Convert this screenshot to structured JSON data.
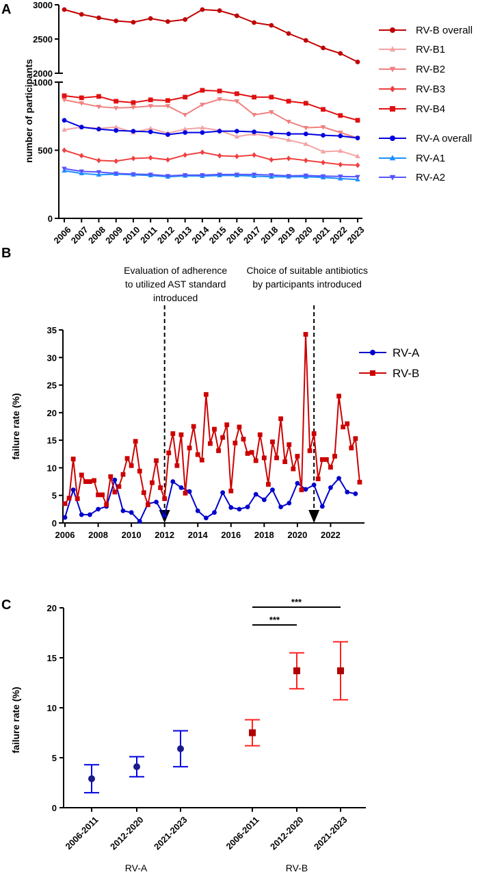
{
  "chart_data": [
    {
      "panel": "A",
      "type": "line",
      "ylabel": "number of participants",
      "y_axis_broken": true,
      "y_ticks_lower": [
        "0",
        "500",
        "1000"
      ],
      "y_ticks_upper": [
        "2000",
        "2500",
        "3000"
      ],
      "ylim_lower": [
        0,
        1000
      ],
      "ylim_upper": [
        2000,
        3000
      ],
      "categories": [
        "2006",
        "2007",
        "2008",
        "2009",
        "2010",
        "2011",
        "2012",
        "2013",
        "2014",
        "2015",
        "2016",
        "2017",
        "2018",
        "2019",
        "2020",
        "2021",
        "2022",
        "2023"
      ],
      "series": [
        {
          "name": "RV-B overall",
          "color": "#c00000",
          "marker": "circle",
          "values": [
            2930,
            2860,
            2810,
            2765,
            2745,
            2800,
            2755,
            2785,
            2930,
            2915,
            2840,
            2740,
            2700,
            2580,
            2480,
            2370,
            2290,
            2165
          ]
        },
        {
          "name": "RV-B1",
          "color": "#f4a3a3",
          "marker": "triangle-up",
          "values": [
            650,
            670,
            660,
            670,
            630,
            660,
            625,
            655,
            665,
            645,
            600,
            620,
            600,
            575,
            545,
            490,
            495,
            455
          ]
        },
        {
          "name": "RV-B2",
          "color": "#f08080",
          "marker": "triangle-down",
          "values": [
            870,
            845,
            820,
            810,
            815,
            825,
            825,
            760,
            835,
            875,
            860,
            760,
            780,
            710,
            665,
            670,
            630,
            590
          ]
        },
        {
          "name": "RV-B3",
          "color": "#f04040",
          "marker": "diamond",
          "values": [
            500,
            460,
            425,
            420,
            440,
            445,
            430,
            465,
            485,
            460,
            455,
            465,
            430,
            440,
            425,
            410,
            395,
            390
          ]
        },
        {
          "name": "RV-B4",
          "color": "#e01010",
          "marker": "square",
          "values": [
            900,
            885,
            895,
            860,
            850,
            870,
            865,
            890,
            940,
            935,
            915,
            890,
            890,
            860,
            845,
            800,
            755,
            720
          ]
        },
        {
          "name": "RV-A overall",
          "color": "#0000e0",
          "marker": "circle",
          "values": [
            720,
            670,
            655,
            645,
            640,
            635,
            615,
            630,
            630,
            640,
            640,
            635,
            625,
            620,
            620,
            610,
            605,
            590
          ]
        },
        {
          "name": "RV-A1",
          "color": "#1e90ff",
          "marker": "triangle-up",
          "values": [
            350,
            330,
            320,
            325,
            320,
            315,
            305,
            312,
            310,
            315,
            315,
            310,
            305,
            305,
            305,
            300,
            292,
            285
          ]
        },
        {
          "name": "RV-A2",
          "color": "#5555ff",
          "marker": "triangle-down",
          "values": [
            365,
            345,
            340,
            330,
            325,
            322,
            312,
            318,
            318,
            322,
            322,
            322,
            318,
            312,
            315,
            310,
            308,
            305
          ]
        }
      ]
    },
    {
      "panel": "B",
      "type": "line",
      "ylabel": "failure rate (%)",
      "ylim": [
        0,
        35
      ],
      "y_ticks": [
        "0",
        "5",
        "10",
        "15",
        "20",
        "25",
        "30",
        "35"
      ],
      "xlim": [
        2006,
        2024
      ],
      "x_ticks": [
        "2006",
        "2008",
        "2010",
        "2012",
        "2014",
        "2016",
        "2018",
        "2020",
        "2022"
      ],
      "annotations": [
        {
          "text_lines": [
            "Evaluation of adherence",
            "to utilized AST standard",
            "introduced"
          ],
          "x": 2012
        },
        {
          "text_lines": [
            "Choice of suitable antibiotics",
            "by participants introduced"
          ],
          "x": 2021
        }
      ],
      "series": [
        {
          "name": "RV-A",
          "color": "#0000cc",
          "marker": "circle",
          "x": [
            2006.0,
            2006.5,
            2007.0,
            2007.5,
            2008.0,
            2008.5,
            2009.0,
            2009.5,
            2010.0,
            2010.5,
            2011.0,
            2011.5,
            2012.0,
            2012.5,
            2013.0,
            2013.5,
            2014.0,
            2014.5,
            2015.0,
            2015.5,
            2016.0,
            2016.5,
            2017.0,
            2017.5,
            2018.0,
            2018.5,
            2019.0,
            2019.5,
            2020.0,
            2020.5,
            2021.0,
            2021.5,
            2022.0,
            2022.5,
            2023.0,
            2023.5
          ],
          "values": [
            1.0,
            6.0,
            1.5,
            1.5,
            2.5,
            3.0,
            7.8,
            2.2,
            1.9,
            0.3,
            3.5,
            3.8,
            1.3,
            7.5,
            6.4,
            5.7,
            2.2,
            0.9,
            1.9,
            5.5,
            2.8,
            2.5,
            2.9,
            5.2,
            4.2,
            6.0,
            2.9,
            3.6,
            7.2,
            6.1,
            6.9,
            3.0,
            6.4,
            8.1,
            5.6,
            5.3
          ]
        },
        {
          "name": "RV-B",
          "color": "#cc0000",
          "marker": "square",
          "x": [
            2006.0,
            2006.25,
            2006.5,
            2006.75,
            2007.0,
            2007.25,
            2007.5,
            2007.75,
            2008.0,
            2008.25,
            2008.5,
            2008.75,
            2009.0,
            2009.25,
            2009.5,
            2009.75,
            2010.0,
            2010.25,
            2010.5,
            2010.75,
            2011.0,
            2011.25,
            2011.5,
            2011.75,
            2012.0,
            2012.25,
            2012.5,
            2012.75,
            2013.0,
            2013.25,
            2013.5,
            2013.75,
            2014.0,
            2014.25,
            2014.5,
            2014.75,
            2015.0,
            2015.25,
            2015.5,
            2015.75,
            2016.0,
            2016.25,
            2016.5,
            2016.75,
            2017.0,
            2017.25,
            2017.5,
            2017.75,
            2018.0,
            2018.25,
            2018.5,
            2018.75,
            2019.0,
            2019.25,
            2019.5,
            2019.75,
            2020.0,
            2020.25,
            2020.5,
            2020.75,
            2021.0,
            2021.25,
            2021.5,
            2021.75,
            2022.0,
            2022.25,
            2022.5,
            2022.75,
            2023.0,
            2023.25,
            2023.5,
            2023.75
          ],
          "values": [
            3.5,
            4.5,
            11.6,
            4.4,
            8.7,
            7.5,
            7.5,
            7.7,
            5.1,
            5.1,
            3.3,
            8.4,
            5.6,
            6.6,
            8.8,
            11.7,
            10.4,
            14.8,
            9.4,
            5.5,
            3.3,
            7.3,
            11.3,
            6.4,
            4.4,
            12.7,
            16.2,
            10.4,
            16.0,
            5.4,
            13.6,
            17.5,
            12.4,
            11.4,
            23.3,
            14.4,
            17.0,
            13.1,
            15.5,
            17.8,
            5.8,
            14.5,
            17.4,
            15.2,
            12.6,
            12.8,
            11.3,
            16.0,
            11.8,
            7.0,
            14.7,
            11.8,
            18.9,
            11.1,
            14.2,
            9.8,
            12.1,
            6.0,
            34.2,
            13.1,
            16.2,
            8.0,
            11.5,
            11.5,
            10.1,
            12.1,
            23.0,
            17.4,
            18.0,
            13.6,
            15.3,
            7.4
          ]
        }
      ]
    },
    {
      "panel": "C",
      "type": "scatter",
      "ylabel": "failure rate (%)",
      "ylim": [
        0,
        20
      ],
      "y_ticks": [
        "0",
        "5",
        "10",
        "15",
        "20"
      ],
      "groups": [
        "RV-A",
        "RV-B"
      ],
      "categories": [
        "2006-2011",
        "2012-2020",
        "2021-2023",
        "2006-2011",
        "2012-2020",
        "2021-2023"
      ],
      "series": [
        {
          "name": "RV-A",
          "color": "#0000e0",
          "marker_color": "#1a1a8c",
          "marker": "circle",
          "values": [
            2.9,
            4.1,
            5.9
          ],
          "lower": [
            1.5,
            3.1,
            4.1
          ],
          "upper": [
            4.3,
            5.1,
            7.7
          ]
        },
        {
          "name": "RV-B",
          "color": "#ff2020",
          "marker_color": "#b00000",
          "marker": "square",
          "values": [
            7.5,
            13.7,
            13.7
          ],
          "lower": [
            6.2,
            11.9,
            10.8
          ],
          "upper": [
            8.8,
            15.5,
            16.6
          ]
        }
      ],
      "significance": [
        {
          "from": "2006-2011",
          "to": "2012-2020",
          "label": "***"
        },
        {
          "from": "2006-2011",
          "to": "2021-2023",
          "label": "***"
        }
      ]
    }
  ]
}
